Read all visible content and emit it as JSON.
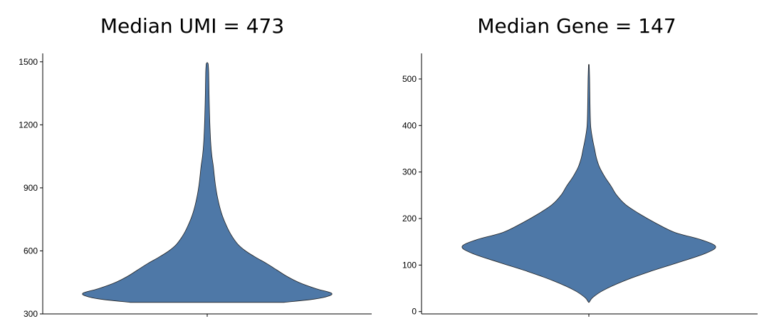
{
  "chart_data": [
    {
      "type": "violin",
      "title": "Median UMI = 473",
      "xlabel": "",
      "ylabel": "",
      "ylim": [
        300,
        1540
      ],
      "yticks": [
        "300",
        "600",
        "900",
        "1200",
        "1500"
      ],
      "grid": false,
      "color": "#4e78a7",
      "outline": "#222222",
      "density_profile": [
        {
          "y": 355,
          "w": 0.62
        },
        {
          "y": 370,
          "w": 0.86
        },
        {
          "y": 385,
          "w": 0.98
        },
        {
          "y": 400,
          "w": 1.0
        },
        {
          "y": 420,
          "w": 0.88
        },
        {
          "y": 450,
          "w": 0.74
        },
        {
          "y": 480,
          "w": 0.64
        },
        {
          "y": 510,
          "w": 0.56
        },
        {
          "y": 540,
          "w": 0.48
        },
        {
          "y": 570,
          "w": 0.39
        },
        {
          "y": 600,
          "w": 0.31
        },
        {
          "y": 630,
          "w": 0.25
        },
        {
          "y": 670,
          "w": 0.2
        },
        {
          "y": 720,
          "w": 0.155
        },
        {
          "y": 780,
          "w": 0.115
        },
        {
          "y": 850,
          "w": 0.085
        },
        {
          "y": 920,
          "w": 0.065
        },
        {
          "y": 1000,
          "w": 0.05
        },
        {
          "y": 1060,
          "w": 0.036
        },
        {
          "y": 1150,
          "w": 0.025
        },
        {
          "y": 1250,
          "w": 0.019
        },
        {
          "y": 1350,
          "w": 0.015
        },
        {
          "y": 1450,
          "w": 0.012
        },
        {
          "y": 1490,
          "w": 0.008
        }
      ]
    },
    {
      "type": "violin",
      "title": "Median Gene = 147",
      "xlabel": "",
      "ylabel": "",
      "ylim": [
        -5,
        555
      ],
      "yticks": [
        "0",
        "100",
        "200",
        "300",
        "400",
        "500"
      ],
      "grid": false,
      "color": "#4e78a7",
      "outline": "#222222",
      "density_profile": [
        {
          "y": 20,
          "w": 0.003
        },
        {
          "y": 30,
          "w": 0.03
        },
        {
          "y": 45,
          "w": 0.11
        },
        {
          "y": 65,
          "w": 0.27
        },
        {
          "y": 85,
          "w": 0.47
        },
        {
          "y": 105,
          "w": 0.7
        },
        {
          "y": 125,
          "w": 0.92
        },
        {
          "y": 140,
          "w": 1.0
        },
        {
          "y": 155,
          "w": 0.88
        },
        {
          "y": 170,
          "w": 0.68
        },
        {
          "y": 190,
          "w": 0.53
        },
        {
          "y": 210,
          "w": 0.4
        },
        {
          "y": 230,
          "w": 0.29
        },
        {
          "y": 250,
          "w": 0.22
        },
        {
          "y": 270,
          "w": 0.175
        },
        {
          "y": 290,
          "w": 0.125
        },
        {
          "y": 310,
          "w": 0.085
        },
        {
          "y": 330,
          "w": 0.06
        },
        {
          "y": 350,
          "w": 0.045
        },
        {
          "y": 370,
          "w": 0.03
        },
        {
          "y": 400,
          "w": 0.014
        },
        {
          "y": 450,
          "w": 0.009
        },
        {
          "y": 500,
          "w": 0.006
        },
        {
          "y": 530,
          "w": 0.003
        }
      ]
    }
  ]
}
